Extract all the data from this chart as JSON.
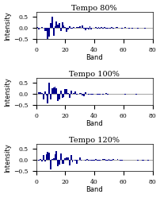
{
  "titles": [
    "Tempo 80%",
    "Tempo 100%",
    "Tempo 120%"
  ],
  "xlabel": "Band",
  "ylabel": "Intensity",
  "xlim": [
    0,
    80
  ],
  "ylim": [
    -0.5,
    0.7
  ],
  "yticks": [
    -0.5,
    0,
    0.5
  ],
  "xticks": [
    0,
    20,
    40,
    60,
    80
  ],
  "bar_color": "#00008B",
  "figsize": [
    2.03,
    2.49
  ],
  "dpi": 100,
  "title_fontsize": 7,
  "label_fontsize": 6,
  "tick_fontsize": 5.5
}
